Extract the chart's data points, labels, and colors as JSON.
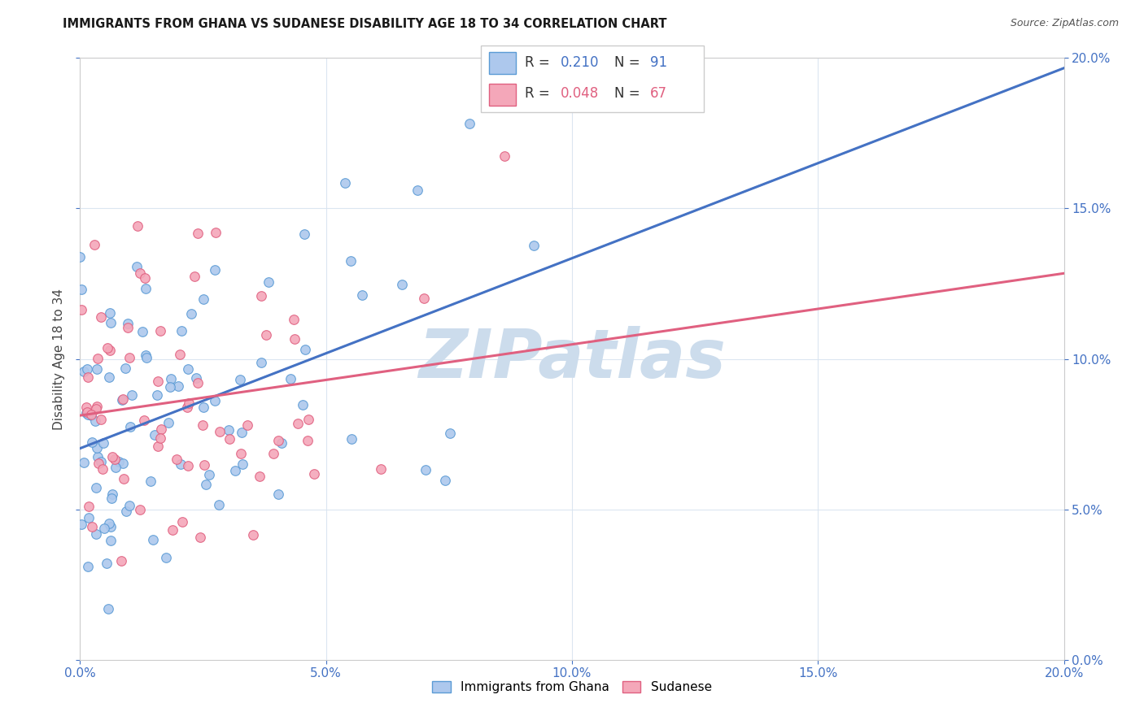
{
  "title": "IMMIGRANTS FROM GHANA VS SUDANESE DISABILITY AGE 18 TO 34 CORRELATION CHART",
  "source": "Source: ZipAtlas.com",
  "tick_labels": [
    "0.0%",
    "5.0%",
    "10.0%",
    "15.0%",
    "20.0%"
  ],
  "tick_vals": [
    0.0,
    0.05,
    0.1,
    0.15,
    0.2
  ],
  "xlim": [
    0.0,
    0.2
  ],
  "ylim": [
    0.0,
    0.2
  ],
  "ylabel": "Disability Age 18 to 34",
  "legend_labels": [
    "Immigrants from Ghana",
    "Sudanese"
  ],
  "ghana_R": 0.21,
  "ghana_N": 91,
  "sudanese_R": 0.048,
  "sudanese_N": 67,
  "ghana_fill_color": "#adc8ed",
  "ghana_edge_color": "#5b9bd5",
  "sudanese_fill_color": "#f4a7b9",
  "sudanese_edge_color": "#e06080",
  "ghana_line_color": "#4472c4",
  "sudanese_line_color": "#e06080",
  "dashed_line_color": "#aaaaaa",
  "watermark_text": "ZIPatlas",
  "watermark_color": "#ccdcec",
  "grid_color": "#d8e4f0",
  "tick_color": "#4472c4",
  "title_color": "#1a1a1a",
  "source_color": "#555555",
  "ylabel_color": "#444444"
}
